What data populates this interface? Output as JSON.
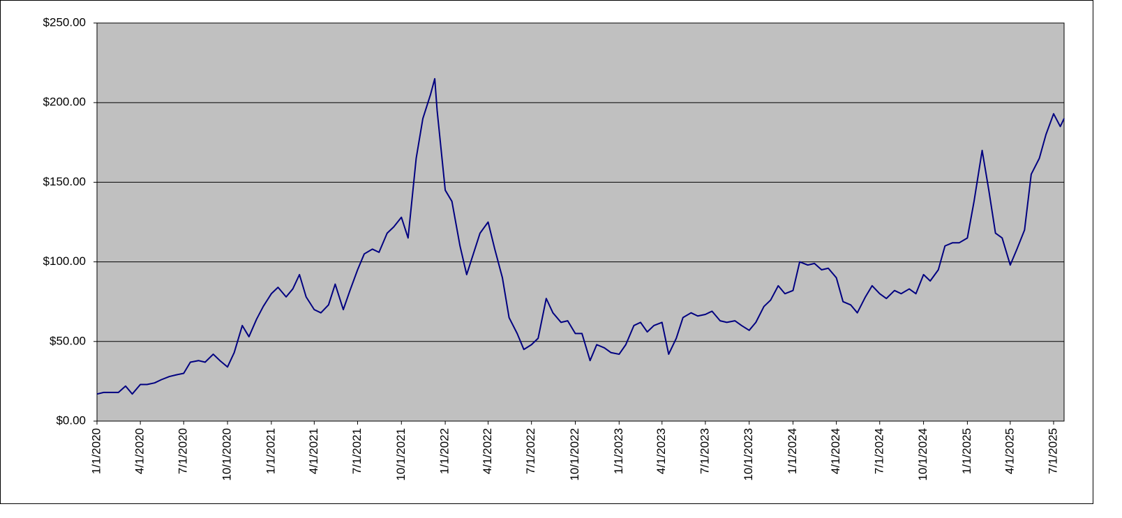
{
  "chart_data": {
    "type": "line",
    "x": [
      "2020-01-01",
      "2020-01-15",
      "2020-02-01",
      "2020-02-15",
      "2020-03-01",
      "2020-03-15",
      "2020-04-01",
      "2020-04-15",
      "2020-05-01",
      "2020-05-15",
      "2020-06-01",
      "2020-06-15",
      "2020-07-01",
      "2020-07-15",
      "2020-08-01",
      "2020-08-15",
      "2020-09-01",
      "2020-09-15",
      "2020-10-01",
      "2020-10-15",
      "2020-11-01",
      "2020-11-15",
      "2020-12-01",
      "2020-12-15",
      "2021-01-01",
      "2021-01-15",
      "2021-02-01",
      "2021-02-15",
      "2021-03-01",
      "2021-03-15",
      "2021-04-01",
      "2021-04-15",
      "2021-05-01",
      "2021-05-15",
      "2021-06-01",
      "2021-06-15",
      "2021-07-01",
      "2021-07-15",
      "2021-08-01",
      "2021-08-15",
      "2021-09-01",
      "2021-09-15",
      "2021-10-01",
      "2021-10-15",
      "2021-11-01",
      "2021-11-15",
      "2021-12-01",
      "2021-12-10",
      "2021-12-15",
      "2022-01-01",
      "2022-01-15",
      "2022-02-01",
      "2022-02-15",
      "2022-03-01",
      "2022-03-15",
      "2022-04-01",
      "2022-04-15",
      "2022-05-01",
      "2022-05-15",
      "2022-06-01",
      "2022-06-15",
      "2022-07-01",
      "2022-07-15",
      "2022-08-01",
      "2022-08-15",
      "2022-09-01",
      "2022-09-15",
      "2022-10-01",
      "2022-10-15",
      "2022-11-01",
      "2022-11-15",
      "2022-12-01",
      "2022-12-15",
      "2023-01-01",
      "2023-01-15",
      "2023-02-01",
      "2023-02-15",
      "2023-03-01",
      "2023-03-15",
      "2023-04-01",
      "2023-04-15",
      "2023-05-01",
      "2023-05-15",
      "2023-06-01",
      "2023-06-15",
      "2023-07-01",
      "2023-07-15",
      "2023-08-01",
      "2023-08-15",
      "2023-09-01",
      "2023-09-15",
      "2023-10-01",
      "2023-10-15",
      "2023-11-01",
      "2023-11-15",
      "2023-12-01",
      "2023-12-15",
      "2024-01-01",
      "2024-01-15",
      "2024-02-01",
      "2024-02-15",
      "2024-03-01",
      "2024-03-15",
      "2024-04-01",
      "2024-04-15",
      "2024-05-01",
      "2024-05-15",
      "2024-06-01",
      "2024-06-15",
      "2024-07-01",
      "2024-07-15",
      "2024-08-01",
      "2024-08-15",
      "2024-09-01",
      "2024-09-15",
      "2024-10-01",
      "2024-10-15",
      "2024-11-01",
      "2024-11-15",
      "2024-12-01",
      "2024-12-15",
      "2025-01-01",
      "2025-01-15",
      "2025-02-01",
      "2025-02-15",
      "2025-03-01",
      "2025-03-15",
      "2025-04-01",
      "2025-04-15",
      "2025-05-01",
      "2025-05-15",
      "2025-06-01",
      "2025-06-15",
      "2025-07-01",
      "2025-07-15",
      "2025-07-23"
    ],
    "series": [
      {
        "color": "#000080",
        "values": [
          17,
          18,
          18,
          18,
          22,
          17,
          23,
          23,
          24,
          26,
          28,
          29,
          30,
          37,
          38,
          37,
          42,
          38,
          34,
          43,
          60,
          53,
          64,
          72,
          80,
          84,
          78,
          83,
          92,
          78,
          70,
          68,
          73,
          86,
          70,
          82,
          95,
          105,
          108,
          106,
          118,
          122,
          128,
          115,
          165,
          190,
          205,
          215,
          195,
          145,
          138,
          110,
          92,
          105,
          118,
          125,
          108,
          90,
          65,
          55,
          45,
          48,
          52,
          77,
          68,
          62,
          63,
          55,
          55,
          38,
          48,
          46,
          43,
          42,
          48,
          60,
          62,
          56,
          60,
          62,
          42,
          52,
          65,
          68,
          66,
          67,
          69,
          63,
          62,
          63,
          60,
          57,
          62,
          72,
          76,
          85,
          80,
          82,
          100,
          98,
          99,
          95,
          96,
          90,
          75,
          73,
          68,
          78,
          85,
          80,
          77,
          82,
          80,
          83,
          80,
          92,
          88,
          95,
          110,
          112,
          112,
          115,
          138,
          170,
          145,
          118,
          115,
          98,
          108,
          120,
          155,
          165,
          180,
          193,
          185,
          190
        ]
      }
    ],
    "xlim": [
      "2020-01-01",
      "2025-07-23"
    ],
    "xticks": [
      {
        "value": "2020-01-01",
        "label": "1/1/2020"
      },
      {
        "value": "2020-04-01",
        "label": "4/1/2020"
      },
      {
        "value": "2020-07-01",
        "label": "7/1/2020"
      },
      {
        "value": "2020-10-01",
        "label": "10/1/2020"
      },
      {
        "value": "2021-01-01",
        "label": "1/1/2021"
      },
      {
        "value": "2021-04-01",
        "label": "4/1/2021"
      },
      {
        "value": "2021-07-01",
        "label": "7/1/2021"
      },
      {
        "value": "2021-10-01",
        "label": "10/1/2021"
      },
      {
        "value": "2022-01-01",
        "label": "1/1/2022"
      },
      {
        "value": "2022-04-01",
        "label": "4/1/2022"
      },
      {
        "value": "2022-07-01",
        "label": "7/1/2022"
      },
      {
        "value": "2022-10-01",
        "label": "10/1/2022"
      },
      {
        "value": "2023-01-01",
        "label": "1/1/2023"
      },
      {
        "value": "2023-04-01",
        "label": "4/1/2023"
      },
      {
        "value": "2023-07-01",
        "label": "7/1/2023"
      },
      {
        "value": "2023-10-01",
        "label": "10/1/2023"
      },
      {
        "value": "2024-01-01",
        "label": "1/1/2024"
      },
      {
        "value": "2024-04-01",
        "label": "4/1/2024"
      },
      {
        "value": "2024-07-01",
        "label": "7/1/2024"
      },
      {
        "value": "2024-10-01",
        "label": "10/1/2024"
      },
      {
        "value": "2025-01-01",
        "label": "1/1/2025"
      },
      {
        "value": "2025-04-01",
        "label": "4/1/2025"
      },
      {
        "value": "2025-07-01",
        "label": "7/1/2025"
      }
    ],
    "ylim": [
      0,
      250
    ],
    "yticks": [
      {
        "value": 0,
        "label": "$0.00"
      },
      {
        "value": 50,
        "label": "$50.00"
      },
      {
        "value": 100,
        "label": "$100.00"
      },
      {
        "value": 150,
        "label": "$150.00"
      },
      {
        "value": 200,
        "label": "$200.00"
      },
      {
        "value": 250,
        "label": "$250.00"
      }
    ],
    "grid": true
  }
}
